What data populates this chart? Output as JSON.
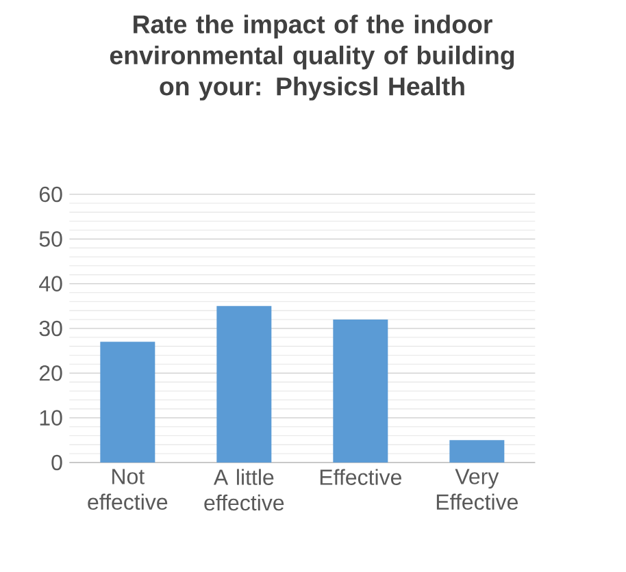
{
  "chart_data": {
    "type": "bar",
    "title": "Rate the impact of the indoor environmental quality of building on your:  Physicsl Health",
    "categories": [
      "Not effective",
      "A little effective",
      "Effective",
      "Very Effective"
    ],
    "values": [
      27,
      35,
      32,
      5
    ],
    "color": "#5b9bd5",
    "ylim": [
      0,
      60
    ],
    "yticks": [
      0,
      10,
      20,
      30,
      40,
      50,
      60
    ],
    "grid": "y"
  }
}
